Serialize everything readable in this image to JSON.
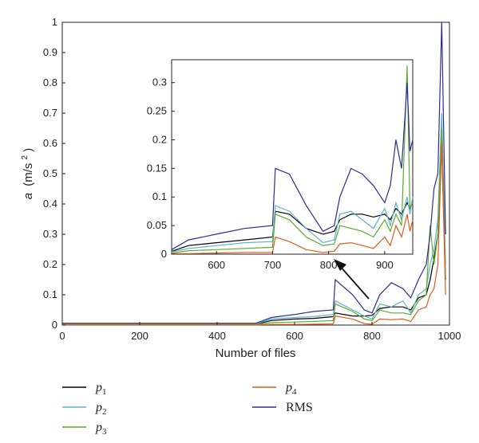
{
  "chart_data": [
    {
      "type": "line",
      "xlabel": "Number of files",
      "ylabel": "a (m/s²)",
      "ylabel_parts": {
        "var": "a",
        "unit": "(m/s",
        "exp": "2",
        "close": ")"
      },
      "xlim": [
        0,
        1000
      ],
      "ylim": [
        0,
        1
      ],
      "x_ticks": [
        "0",
        "200",
        "400",
        "600",
        "800",
        "1000"
      ],
      "y_ticks": [
        "0",
        "0.1",
        "0.2",
        "0.3",
        "0.4",
        "0.5",
        "0.6",
        "0.7",
        "0.8",
        "0.9",
        "1"
      ],
      "legend_position": "bottom",
      "series": [
        {
          "name": "p1",
          "label": "p",
          "sub": "1",
          "color": "#000000",
          "x": [
            0,
            100,
            200,
            300,
            400,
            500,
            540,
            600,
            650,
            700,
            705,
            750,
            780,
            800,
            820,
            850,
            880,
            900,
            920,
            940,
            950,
            960,
            970,
            980,
            990
          ],
          "y": [
            0.003,
            0.003,
            0.003,
            0.003,
            0.003,
            0.003,
            0.015,
            0.02,
            0.022,
            0.028,
            0.04,
            0.03,
            0.03,
            0.032,
            0.055,
            0.06,
            0.06,
            0.05,
            0.09,
            0.1,
            0.15,
            0.22,
            0.3,
            0.6,
            0.15
          ]
        },
        {
          "name": "p2",
          "label": "p",
          "sub": "2",
          "color": "#5ab4c8",
          "x": [
            0,
            100,
            200,
            300,
            400,
            500,
            540,
            600,
            650,
            700,
            705,
            750,
            780,
            800,
            820,
            850,
            880,
            900,
            920,
            940,
            950,
            960,
            970,
            980,
            990
          ],
          "y": [
            0.004,
            0.004,
            0.004,
            0.004,
            0.004,
            0.004,
            0.02,
            0.025,
            0.028,
            0.035,
            0.08,
            0.05,
            0.03,
            0.02,
            0.07,
            0.06,
            0.08,
            0.04,
            0.1,
            0.12,
            0.2,
            0.25,
            0.35,
            0.7,
            0.2
          ]
        },
        {
          "name": "p3",
          "label": "p",
          "sub": "3",
          "color": "#5aac2c",
          "x": [
            0,
            100,
            200,
            300,
            400,
            500,
            540,
            600,
            650,
            700,
            705,
            750,
            780,
            800,
            820,
            850,
            880,
            900,
            920,
            940,
            950,
            960,
            970,
            980,
            990
          ],
          "y": [
            0.002,
            0.002,
            0.002,
            0.002,
            0.002,
            0.002,
            0.008,
            0.01,
            0.012,
            0.015,
            0.07,
            0.045,
            0.02,
            0.015,
            0.05,
            0.04,
            0.04,
            0.035,
            0.08,
            0.1,
            0.33,
            0.2,
            0.3,
            0.65,
            0.15
          ]
        },
        {
          "name": "p4",
          "label": "p",
          "sub": "4",
          "color": "#e05a1e",
          "x": [
            0,
            100,
            200,
            300,
            400,
            500,
            540,
            600,
            650,
            700,
            705,
            750,
            780,
            800,
            820,
            850,
            880,
            900,
            920,
            940,
            950,
            960,
            970,
            980,
            990
          ],
          "y": [
            0.001,
            0.001,
            0.001,
            0.001,
            0.001,
            0.001,
            0.002,
            0.002,
            0.003,
            0.004,
            0.03,
            0.02,
            0.005,
            0.003,
            0.02,
            0.018,
            0.02,
            0.012,
            0.05,
            0.06,
            0.1,
            0.12,
            0.2,
            0.6,
            0.1
          ]
        },
        {
          "name": "RMS",
          "label": "RMS",
          "sub": "",
          "color": "#2e2a96",
          "x": [
            0,
            100,
            200,
            300,
            400,
            500,
            540,
            600,
            650,
            700,
            705,
            750,
            780,
            800,
            820,
            850,
            880,
            900,
            920,
            940,
            950,
            960,
            970,
            980,
            990
          ],
          "y": [
            0.006,
            0.006,
            0.006,
            0.006,
            0.006,
            0.006,
            0.025,
            0.035,
            0.045,
            0.05,
            0.15,
            0.1,
            0.05,
            0.04,
            0.1,
            0.14,
            0.12,
            0.09,
            0.15,
            0.2,
            0.3,
            0.45,
            0.5,
            1.0,
            0.3
          ]
        }
      ]
    },
    {
      "type": "line",
      "role": "inset",
      "xlim": [
        520,
        950
      ],
      "ylim": [
        0,
        0.34
      ],
      "x_ticks": [
        "600",
        "700",
        "800",
        "900"
      ],
      "y_ticks": [
        "0",
        "0.05",
        "0.1",
        "0.15",
        "0.2",
        "0.25",
        "0.3"
      ],
      "series_ref": "same as main chart",
      "series": [
        {
          "name": "p1",
          "color": "#000000",
          "x": [
            520,
            550,
            600,
            650,
            700,
            705,
            730,
            760,
            790,
            810,
            820,
            840,
            860,
            880,
            900,
            910,
            920,
            930,
            940,
            945,
            950
          ],
          "y": [
            0.005,
            0.015,
            0.02,
            0.025,
            0.03,
            0.075,
            0.07,
            0.045,
            0.035,
            0.04,
            0.06,
            0.07,
            0.07,
            0.065,
            0.07,
            0.06,
            0.08,
            0.07,
            0.09,
            0.08,
            0.09
          ]
        },
        {
          "name": "p2",
          "color": "#5ab4c8",
          "x": [
            520,
            550,
            600,
            650,
            700,
            705,
            730,
            760,
            790,
            810,
            820,
            840,
            860,
            880,
            900,
            910,
            920,
            930,
            940,
            945,
            950
          ],
          "y": [
            0.004,
            0.01,
            0.015,
            0.02,
            0.022,
            0.085,
            0.075,
            0.045,
            0.02,
            0.025,
            0.07,
            0.075,
            0.06,
            0.045,
            0.08,
            0.05,
            0.09,
            0.06,
            0.1,
            0.07,
            0.1
          ]
        },
        {
          "name": "p3",
          "color": "#5aac2c",
          "x": [
            520,
            550,
            600,
            650,
            700,
            705,
            730,
            760,
            790,
            810,
            820,
            840,
            860,
            880,
            900,
            910,
            920,
            930,
            940,
            945,
            950
          ],
          "y": [
            0.002,
            0.006,
            0.008,
            0.01,
            0.012,
            0.07,
            0.06,
            0.03,
            0.015,
            0.018,
            0.05,
            0.045,
            0.04,
            0.03,
            0.06,
            0.04,
            0.07,
            0.05,
            0.33,
            0.08,
            0.09
          ]
        },
        {
          "name": "p4",
          "color": "#e05a1e",
          "x": [
            520,
            550,
            600,
            650,
            700,
            705,
            730,
            760,
            790,
            810,
            820,
            840,
            860,
            880,
            900,
            910,
            920,
            930,
            940,
            945,
            950
          ],
          "y": [
            0.001,
            0.001,
            0.002,
            0.003,
            0.003,
            0.03,
            0.022,
            0.008,
            0.003,
            0.005,
            0.018,
            0.02,
            0.015,
            0.01,
            0.03,
            0.015,
            0.05,
            0.03,
            0.07,
            0.04,
            0.06
          ]
        },
        {
          "name": "RMS",
          "color": "#2e2a96",
          "x": [
            520,
            550,
            600,
            650,
            700,
            705,
            730,
            760,
            790,
            810,
            820,
            840,
            860,
            880,
            900,
            910,
            920,
            930,
            940,
            945,
            950
          ],
          "y": [
            0.008,
            0.025,
            0.035,
            0.045,
            0.05,
            0.15,
            0.14,
            0.085,
            0.04,
            0.05,
            0.1,
            0.15,
            0.14,
            0.12,
            0.09,
            0.12,
            0.2,
            0.15,
            0.3,
            0.18,
            0.2
          ]
        }
      ]
    }
  ]
}
